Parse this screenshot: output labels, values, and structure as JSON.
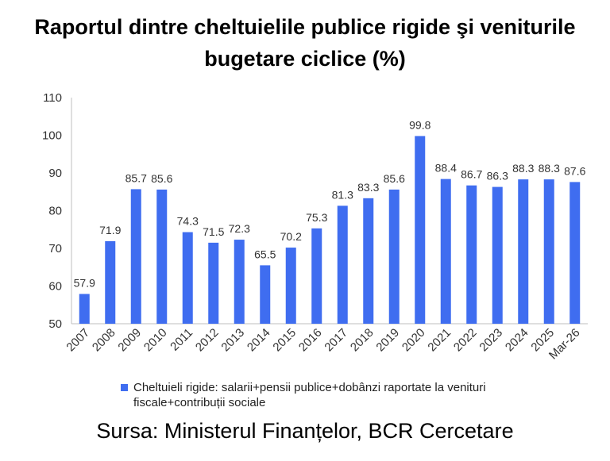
{
  "chart_data": {
    "type": "bar",
    "title_lines": [
      "Raportul dintre cheltuielile publice rigide şi veniturile",
      "bugetare ciclice (%)"
    ],
    "categories": [
      "2007",
      "2008",
      "2009",
      "2010",
      "2011",
      "2012",
      "2013",
      "2014",
      "2015",
      "2016",
      "2017",
      "2018",
      "2019",
      "2020",
      "2021",
      "2022",
      "2023",
      "2024",
      "2025",
      "Mar-26"
    ],
    "series": [
      {
        "name": "Cheltuieli rigide: salarii+pensii publice+dobânzi raportate la venituri fiscale+contribuții sociale",
        "values": [
          57.9,
          71.9,
          85.7,
          85.6,
          74.3,
          71.5,
          72.3,
          65.5,
          70.2,
          75.3,
          81.3,
          83.3,
          85.6,
          99.8,
          88.4,
          86.7,
          86.3,
          88.3,
          88.3,
          87.6
        ]
      }
    ],
    "ylim": [
      50,
      110
    ],
    "yticks": [
      50,
      60,
      70,
      80,
      90,
      100,
      110
    ],
    "ytick_labels": [
      "50",
      "60",
      "70",
      "80",
      "90",
      "100",
      "110"
    ],
    "grid": false,
    "legend_position": "bottom",
    "bar_color": "#3f6df0",
    "source": "Sursa: Ministerul Finanțelor, BCR Cercetare"
  }
}
